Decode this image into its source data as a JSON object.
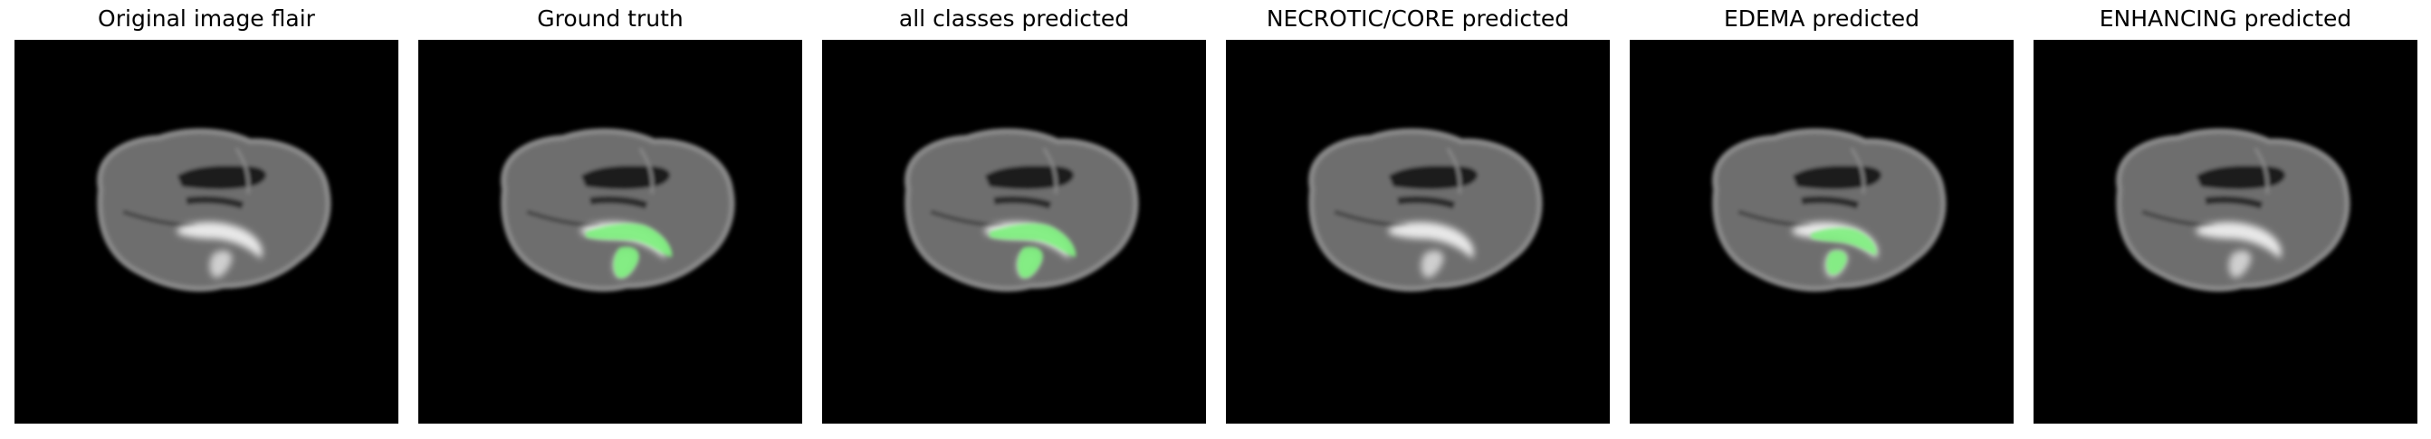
{
  "panels": [
    {
      "title": "Original image flair",
      "overlay": "none"
    },
    {
      "title": "Ground truth",
      "overlay": "full"
    },
    {
      "title": "all classes predicted",
      "overlay": "full"
    },
    {
      "title": "NECROTIC/CORE predicted",
      "overlay": "none"
    },
    {
      "title": "EDEMA predicted",
      "overlay": "partial"
    },
    {
      "title": "ENHANCING predicted",
      "overlay": "none"
    }
  ],
  "colors": {
    "background": "#000000",
    "brain_tissue": "#6e6e6e",
    "ventricle": "#1c1c1c",
    "hyperintensity": "#e8e8e8",
    "segmentation_mask": "#7ef07e"
  }
}
